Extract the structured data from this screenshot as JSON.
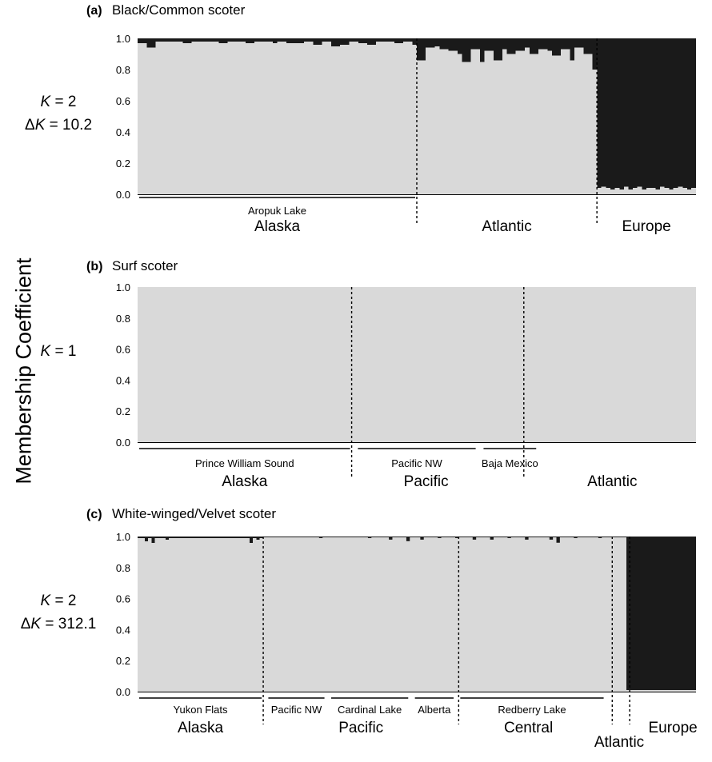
{
  "chart_data": {
    "type": "bar",
    "ylabel": "Membership Coefficient",
    "y_ticks": [
      "0.0",
      "0.2",
      "0.4",
      "0.6",
      "0.8",
      "1.0"
    ],
    "ylim": [
      0,
      1
    ],
    "colors": {
      "cluster1": "#d9d9d9",
      "cluster2": "#1a1a1a"
    },
    "panels": [
      {
        "letter": "(a)",
        "title": "Black/Common scoter",
        "k_line": "= 2",
        "dk_line": "= 10.2",
        "n_individuals": 124,
        "segments": [
          {
            "from": 0,
            "to": 62,
            "values": [
              0.97,
              0.94,
              0.98,
              0.98,
              0.98,
              0.97,
              0.98,
              0.98,
              0.98,
              0.97,
              0.98,
              0.98,
              0.97,
              0.98,
              0.98,
              0.97,
              0.98,
              0.97,
              0.97,
              0.98,
              0.96,
              0.98,
              0.95,
              0.96,
              0.98,
              0.97,
              0.96,
              0.98,
              0.98,
              0.97,
              0.98,
              0.96
            ]
          },
          {
            "from": 62,
            "to": 102,
            "values": [
              0.86,
              0.94,
              0.95,
              0.93,
              0.92,
              0.9,
              0.85,
              0.93,
              0.85,
              0.92,
              0.86,
              0.93,
              0.9,
              0.92,
              0.94,
              0.9,
              0.93,
              0.92,
              0.89,
              0.93,
              0.86,
              0.94,
              0.9,
              0.8
            ]
          },
          {
            "from": 102,
            "to": 124,
            "values": [
              0.04,
              0.05,
              0.04,
              0.03,
              0.04,
              0.03,
              0.05,
              0.03,
              0.04,
              0.05,
              0.03,
              0.04,
              0.04,
              0.03,
              0.05,
              0.04,
              0.03,
              0.04,
              0.05,
              0.04,
              0.03,
              0.04
            ]
          }
        ],
        "dividers": [
          62,
          102
        ],
        "sublabels": [
          {
            "text": "Aropuk Lake",
            "from": 0,
            "to": 62
          }
        ],
        "regions": [
          {
            "name": "Alaska",
            "center": 31
          },
          {
            "name": "Atlantic",
            "center": 82
          },
          {
            "name": "Europe",
            "center": 113
          }
        ]
      },
      {
        "letter": "(b)",
        "title": "Surf scoter",
        "k_line": "= 1",
        "dk_line": "",
        "n_individuals": 120,
        "segments": [
          {
            "from": 0,
            "to": 120,
            "values": [
              1.0
            ]
          }
        ],
        "dividers": [
          46,
          83
        ],
        "sublabels": [
          {
            "text": "Prince William Sound",
            "from": 0,
            "to": 46
          },
          {
            "text": "Pacific NW",
            "from": 47,
            "to": 73
          },
          {
            "text": "Baja Mexico",
            "from": 74,
            "to": 86
          }
        ],
        "regions": [
          {
            "name": "Alaska",
            "center": 23
          },
          {
            "name": "Pacific",
            "center": 62
          },
          {
            "name": "Atlantic",
            "center": 102
          }
        ]
      },
      {
        "letter": "(c)",
        "title": "White-winged/Velvet scoter",
        "k_line": "= 2",
        "dk_line": "= 312.1",
        "n_individuals": 160,
        "segments": [
          {
            "from": 0,
            "to": 36,
            "values": [
              0.99,
              0.99,
              0.97,
              0.99,
              0.96,
              0.99,
              0.99,
              0.99,
              0.98,
              0.99,
              0.99,
              0.99,
              0.99,
              0.99,
              0.99,
              0.99,
              0.99,
              0.99,
              0.99,
              0.99,
              0.99,
              0.99,
              0.99,
              0.99,
              0.99,
              0.99,
              0.99,
              0.99,
              0.99,
              0.99,
              0.99,
              0.99,
              0.96,
              0.99,
              0.98,
              0.99
            ]
          },
          {
            "from": 36,
            "to": 140,
            "values": [
              0.995
            ]
          },
          {
            "from": 140,
            "to": 160,
            "values": [
              0.01,
              0.01,
              0.01,
              0.01,
              0.01,
              0.01,
              0.01,
              0.01,
              0.01,
              0.01,
              0.01,
              0.01,
              0.01,
              0.01,
              0.01,
              0.01,
              0.01,
              0.01,
              0.01,
              0.01
            ]
          }
        ],
        "small_dips": [
          [
            52,
            0.99
          ],
          [
            66,
            0.99
          ],
          [
            72,
            0.98
          ],
          [
            77,
            0.97
          ],
          [
            81,
            0.98
          ],
          [
            86,
            0.99
          ],
          [
            91,
            0.99
          ],
          [
            96,
            0.98
          ],
          [
            101,
            0.98
          ],
          [
            106,
            0.99
          ],
          [
            111,
            0.98
          ],
          [
            118,
            0.98
          ],
          [
            120,
            0.96
          ],
          [
            125,
            0.99
          ],
          [
            132,
            0.99
          ]
        ],
        "dividers": [
          36,
          92,
          136,
          141
        ],
        "sublabels": [
          {
            "text": "Yukon Flats",
            "from": 0,
            "to": 36
          },
          {
            "text": "Pacific NW",
            "from": 37,
            "to": 54
          },
          {
            "text": "Cardinal Lake",
            "from": 55,
            "to": 78
          },
          {
            "text": "Alberta",
            "from": 79,
            "to": 91
          },
          {
            "text": "Redberry Lake",
            "from": 92,
            "to": 134
          }
        ],
        "regions": [
          {
            "name": "Alaska",
            "center": 18
          },
          {
            "name": "Pacific",
            "center": 64
          },
          {
            "name": "Central",
            "center": 112
          },
          {
            "name": "Atlantic",
            "center": 138
          },
          {
            "name": "Europe",
            "center": 152
          }
        ]
      }
    ]
  }
}
